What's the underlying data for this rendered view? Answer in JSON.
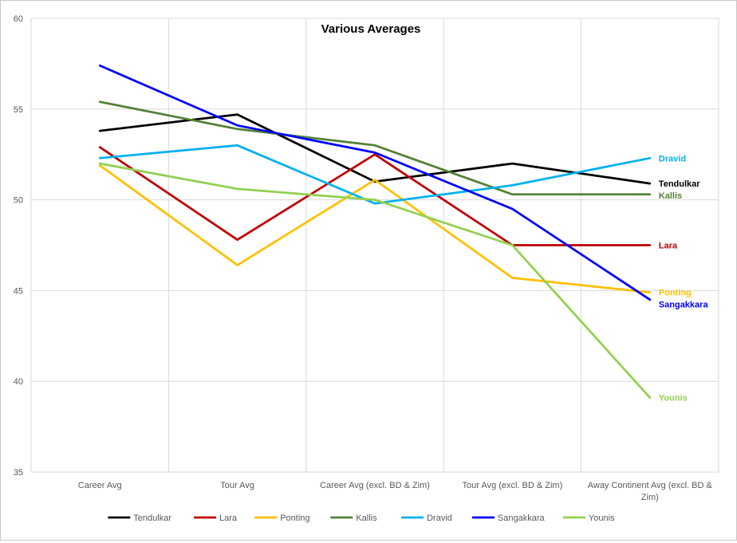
{
  "chart_data": {
    "type": "line",
    "title": "Various Averages",
    "xlabel": "",
    "ylabel": "",
    "ylim": [
      35,
      60
    ],
    "yticks": [
      35,
      40,
      45,
      50,
      55,
      60
    ],
    "grid": true,
    "legend_position": "bottom",
    "categories": [
      [
        "Career Avg"
      ],
      [
        "Tour Avg"
      ],
      [
        "Career Avg (excl. BD & Zim)"
      ],
      [
        "Tour Avg (excl. BD & Zim)"
      ],
      [
        "Away Continent Avg (excl. BD &",
        "Zim)"
      ]
    ],
    "series": [
      {
        "name": "Tendulkar",
        "color": "#000000",
        "values": [
          53.8,
          54.7,
          51.0,
          52.0,
          50.9
        ]
      },
      {
        "name": "Lara",
        "color": "#c00000",
        "values": [
          52.9,
          47.8,
          52.5,
          47.5,
          47.5
        ]
      },
      {
        "name": "Ponting",
        "color": "#ffc000",
        "values": [
          51.9,
          46.4,
          51.1,
          45.7,
          44.9
        ]
      },
      {
        "name": "Kallis",
        "color": "#548235",
        "values": [
          55.4,
          53.9,
          53.0,
          50.3,
          50.3
        ]
      },
      {
        "name": "Dravid",
        "color": "#00b0f0",
        "values": [
          52.3,
          53.0,
          49.8,
          50.8,
          52.3
        ]
      },
      {
        "name": "Sangakkara",
        "color": "#0000ff",
        "values": [
          57.4,
          54.1,
          52.6,
          49.5,
          44.5
        ]
      },
      {
        "name": "Younis",
        "color": "#92d050",
        "values": [
          52.0,
          50.6,
          50.0,
          47.5,
          39.1
        ]
      }
    ]
  }
}
